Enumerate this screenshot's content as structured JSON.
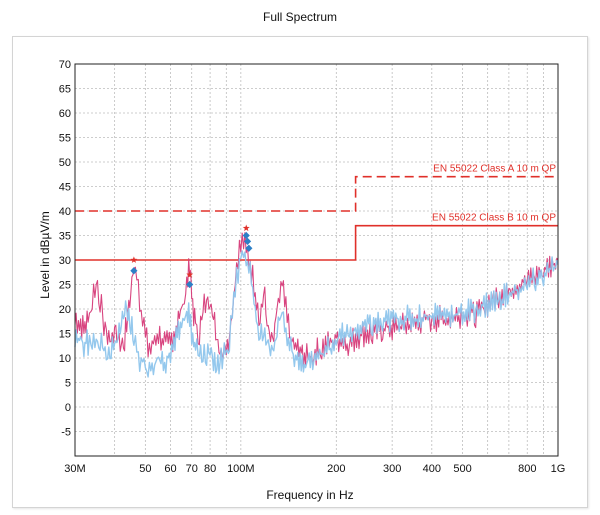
{
  "chart_data": {
    "type": "line",
    "title": "Full Spectrum",
    "xlabel": "Frequency in Hz",
    "ylabel": "Level in dBµV/m",
    "x_scale": "log",
    "xlim": [
      30000000,
      1000000000
    ],
    "ylim": [
      -10,
      70
    ],
    "grid": true,
    "x_ticks": [
      {
        "v": 30000000,
        "label": "30M"
      },
      {
        "v": 50000000,
        "label": "50"
      },
      {
        "v": 60000000,
        "label": "60"
      },
      {
        "v": 70000000,
        "label": "70"
      },
      {
        "v": 80000000,
        "label": "80"
      },
      {
        "v": 100000000,
        "label": "100M"
      },
      {
        "v": 200000000,
        "label": "200"
      },
      {
        "v": 300000000,
        "label": "300"
      },
      {
        "v": 400000000,
        "label": "400"
      },
      {
        "v": 500000000,
        "label": "500"
      },
      {
        "v": 800000000,
        "label": "800"
      },
      {
        "v": 1000000000,
        "label": "1G"
      }
    ],
    "y_ticks": [
      70,
      65,
      60,
      55,
      50,
      45,
      40,
      35,
      30,
      25,
      20,
      15,
      10,
      5,
      0,
      -5
    ],
    "limits": [
      {
        "name": "EN 55022 Class A 10 m QP",
        "style": "dashed",
        "color": "#e0302a",
        "x": [
          30000000,
          230000000,
          230000000,
          1000000000
        ],
        "y": [
          40,
          40,
          47,
          47
        ]
      },
      {
        "name": "EN 55022 Class B 10 m QP",
        "style": "solid",
        "color": "#e0302a",
        "x": [
          30000000,
          230000000,
          230000000,
          1000000000
        ],
        "y": [
          30,
          30,
          37,
          37
        ]
      }
    ],
    "series": [
      {
        "color": "#d63a78",
        "x": [
          30000000,
          31000000,
          32000000,
          33000000,
          34000000,
          35000000,
          36000000,
          37000000,
          38000000,
          39000000,
          40000000,
          41000000,
          42000000,
          43000000,
          44000000,
          45000000,
          46000000,
          47000000,
          48000000,
          49000000,
          50000000,
          51000000,
          52000000,
          53000000,
          55000000,
          57000000,
          59000000,
          61000000,
          63000000,
          65000000,
          67000000,
          68000000,
          69000000,
          70000000,
          71000000,
          72000000,
          74000000,
          76000000,
          78000000,
          80000000,
          82000000,
          84000000,
          86000000,
          88000000,
          90000000,
          92000000,
          94000000,
          96000000,
          98000000,
          100000000,
          102000000,
          104000000,
          106000000,
          108000000,
          110000000,
          112000000,
          115000000,
          118000000,
          121000000,
          124000000,
          127000000,
          130000000,
          135000000,
          140000000,
          145000000,
          150000000,
          155000000,
          160000000,
          170000000,
          180000000,
          190000000,
          200000000,
          220000000,
          240000000,
          260000000,
          280000000,
          300000000,
          350000000,
          400000000,
          450000000,
          500000000,
          550000000,
          600000000,
          650000000,
          700000000,
          750000000,
          800000000,
          850000000,
          900000000,
          950000000,
          1000000000
        ],
        "y": [
          18,
          17,
          16,
          18,
          22,
          26,
          22,
          17,
          15,
          14,
          16,
          15,
          13,
          14,
          19,
          24,
          29,
          28,
          22,
          18,
          15,
          12,
          12,
          13,
          15,
          13,
          13,
          14,
          17,
          20,
          24,
          27,
          28,
          23,
          19,
          17,
          15,
          20,
          22,
          23,
          18,
          15,
          12,
          12,
          13,
          15,
          20,
          26,
          31,
          33,
          34,
          32,
          30,
          28,
          25,
          22,
          18,
          24,
          18,
          14,
          14,
          20,
          25,
          18,
          13,
          12,
          11,
          10,
          11,
          12,
          13,
          14,
          13,
          15,
          15,
          16,
          16,
          17,
          18,
          18,
          19,
          19,
          21,
          23,
          24,
          25,
          26,
          27,
          28,
          29,
          30
        ]
      },
      {
        "color": "#8ec5ec",
        "x": [
          30000000,
          31000000,
          32000000,
          33000000,
          34000000,
          35000000,
          36000000,
          37000000,
          38000000,
          39000000,
          40000000,
          41000000,
          42000000,
          43000000,
          44000000,
          45000000,
          46000000,
          47000000,
          48000000,
          49000000,
          50000000,
          51000000,
          52000000,
          53000000,
          55000000,
          57000000,
          59000000,
          61000000,
          63000000,
          65000000,
          67000000,
          68000000,
          69000000,
          70000000,
          71000000,
          72000000,
          74000000,
          76000000,
          78000000,
          80000000,
          82000000,
          84000000,
          86000000,
          88000000,
          90000000,
          92000000,
          94000000,
          96000000,
          98000000,
          100000000,
          102000000,
          104000000,
          106000000,
          108000000,
          110000000,
          112000000,
          115000000,
          118000000,
          121000000,
          124000000,
          127000000,
          130000000,
          135000000,
          140000000,
          145000000,
          150000000,
          155000000,
          160000000,
          170000000,
          180000000,
          190000000,
          200000000,
          220000000,
          240000000,
          260000000,
          280000000,
          300000000,
          350000000,
          400000000,
          450000000,
          500000000,
          550000000,
          600000000,
          650000000,
          700000000,
          750000000,
          800000000,
          850000000,
          900000000,
          950000000,
          1000000000
        ],
        "y": [
          15,
          14,
          13,
          13,
          14,
          14,
          13,
          13,
          12,
          12,
          13,
          15,
          17,
          19,
          20,
          17,
          14,
          12,
          10,
          9,
          8,
          7,
          7,
          8,
          10,
          9,
          10,
          12,
          14,
          17,
          19,
          20,
          18,
          15,
          13,
          12,
          11,
          10,
          11,
          12,
          10,
          9,
          9,
          10,
          11,
          13,
          20,
          24,
          28,
          31,
          33,
          31,
          29,
          26,
          23,
          18,
          15,
          17,
          14,
          11,
          12,
          17,
          19,
          15,
          11,
          10,
          9,
          9,
          10,
          11,
          12,
          14,
          15,
          16,
          17,
          17,
          18,
          18,
          19,
          19,
          19,
          20,
          21,
          22,
          23,
          24,
          25,
          26,
          27,
          28,
          29
        ]
      }
    ],
    "markers": [
      {
        "x": 46000000,
        "y": 30,
        "type": "peak",
        "color": "#e0302a"
      },
      {
        "x": 46000000,
        "y": 27.8,
        "type": "qp",
        "color": "#2d7fc6"
      },
      {
        "x": 69000000,
        "y": 27,
        "type": "peak",
        "color": "#e0302a"
      },
      {
        "x": 69000000,
        "y": 25,
        "type": "qp",
        "color": "#2d7fc6"
      },
      {
        "x": 104000000,
        "y": 36.5,
        "type": "peak",
        "color": "#e0302a"
      },
      {
        "x": 104000000,
        "y": 35,
        "type": "qp",
        "color": "#2d7fc6"
      },
      {
        "x": 105000000,
        "y": 33.8,
        "type": "qp",
        "color": "#2d7fc6"
      },
      {
        "x": 106000000,
        "y": 32.4,
        "type": "qp",
        "color": "#2d7fc6"
      }
    ]
  }
}
